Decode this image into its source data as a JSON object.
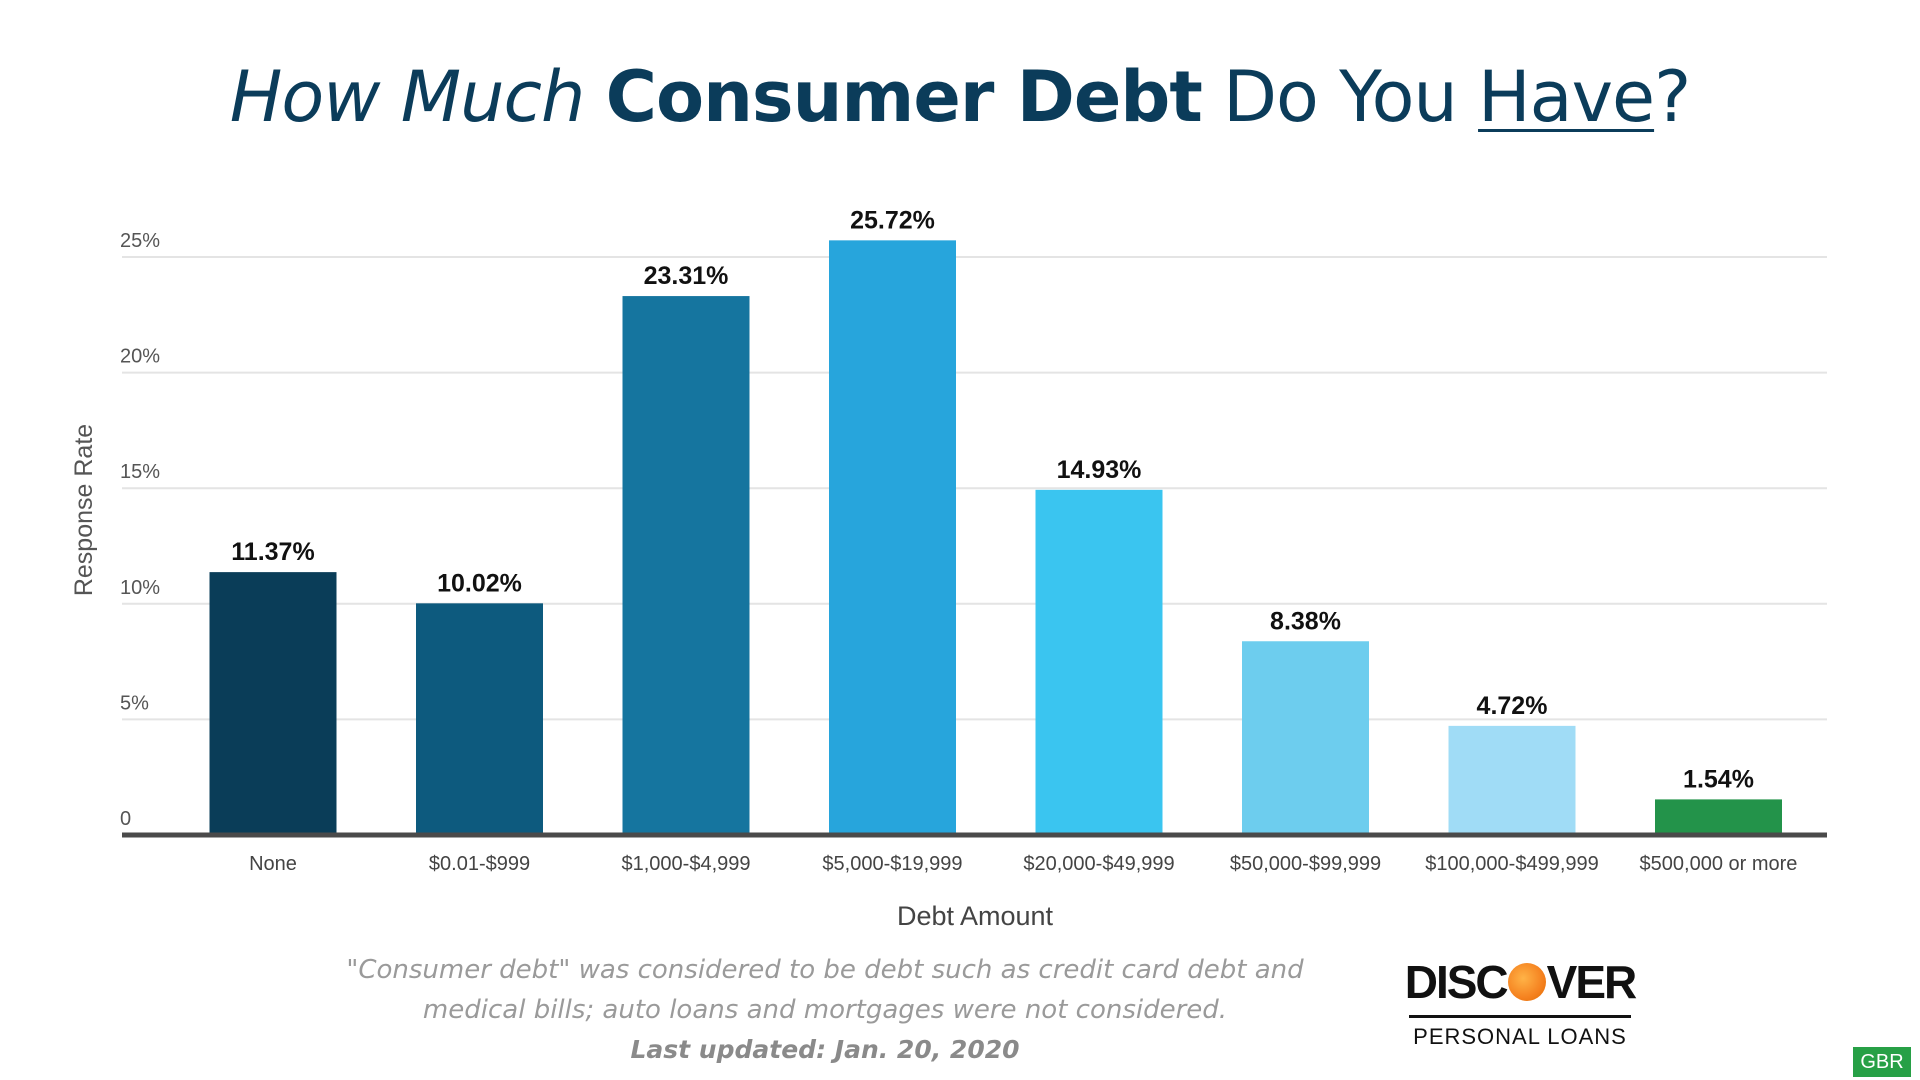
{
  "title": {
    "part1": "How Much",
    "part2": "Consumer Debt",
    "part3": "Do You",
    "part4": "Have",
    "part5": "?"
  },
  "chart_data": {
    "type": "bar",
    "title": "How Much Consumer Debt Do You Have?",
    "xlabel": "Debt Amount",
    "ylabel": "Response Rate",
    "ylim": [
      0,
      25
    ],
    "yticks": [
      "0",
      "5%",
      "10%",
      "15%",
      "20%",
      "25%"
    ],
    "ytick_values": [
      0,
      5,
      10,
      15,
      20,
      25
    ],
    "grid": true,
    "categories": [
      "None",
      "$0.01-$999",
      "$1,000-$4,999",
      "$5,000-$19,999",
      "$20,000-$49,999",
      "$50,000-$99,999",
      "$100,000-$499,999",
      "$500,000 or more"
    ],
    "values": [
      11.37,
      10.02,
      23.31,
      25.72,
      14.93,
      8.38,
      4.72,
      1.54
    ],
    "labels": [
      "11.37%",
      "10.02%",
      "23.31%",
      "25.72%",
      "14.93%",
      "8.38%",
      "4.72%",
      "1.54%"
    ],
    "colors": [
      "#0a3d58",
      "#0d5a7e",
      "#15759f",
      "#27a5dc",
      "#3ac5f0",
      "#6dcdee",
      "#a0dcf6",
      "#23934a"
    ]
  },
  "footnote": {
    "text": "\"Consumer debt\" was considered to be debt such as credit card debt and medical bills; auto loans and mortgages were not considered.",
    "updated": "Last updated: Jan. 20, 2020"
  },
  "logo": {
    "word_left": "DISC",
    "word_right": "VER",
    "sub": "PERSONAL LOANS"
  },
  "badge": "GBR"
}
